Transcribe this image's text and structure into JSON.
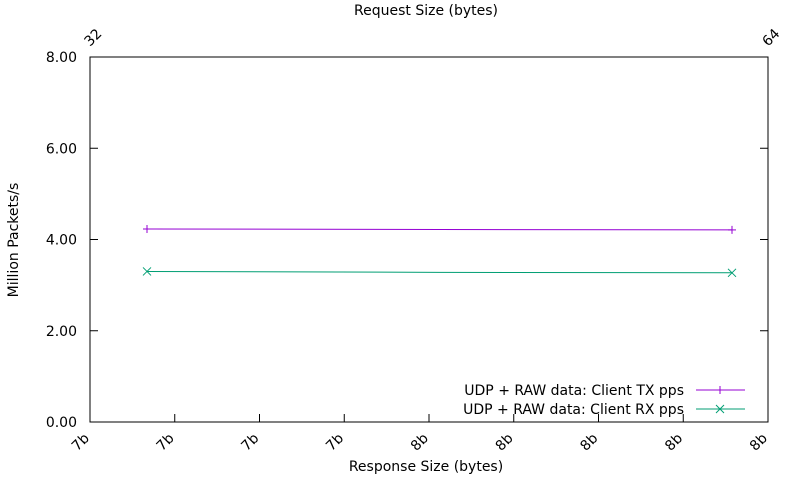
{
  "chart_data": {
    "type": "line",
    "title": "",
    "top_xlabel": "Request Size (bytes)",
    "xlabel": "Response Size (bytes)",
    "ylabel": "Million Packets/s",
    "ylim": [
      0,
      8
    ],
    "yticks": [
      "0.00",
      "2.00",
      "4.00",
      "6.00",
      "8.00"
    ],
    "bottom_xticks": [
      "7b",
      "7b",
      "7b",
      "7b",
      "8b",
      "8b",
      "8b",
      "8b",
      "8b"
    ],
    "top_xticks": [
      "32",
      "64"
    ],
    "grid": false,
    "legend_position": "bottom-right",
    "x": [
      32,
      48,
      64
    ],
    "series": [
      {
        "name": "UDP + RAW data: Client TX pps",
        "color": "#9400d3",
        "marker": "plus",
        "values": [
          4.23,
          4.22,
          4.21
        ]
      },
      {
        "name": "UDP + RAW data: Client RX pps",
        "color": "#009e73",
        "marker": "cross",
        "values": [
          3.3,
          3.28,
          3.27
        ]
      }
    ]
  }
}
